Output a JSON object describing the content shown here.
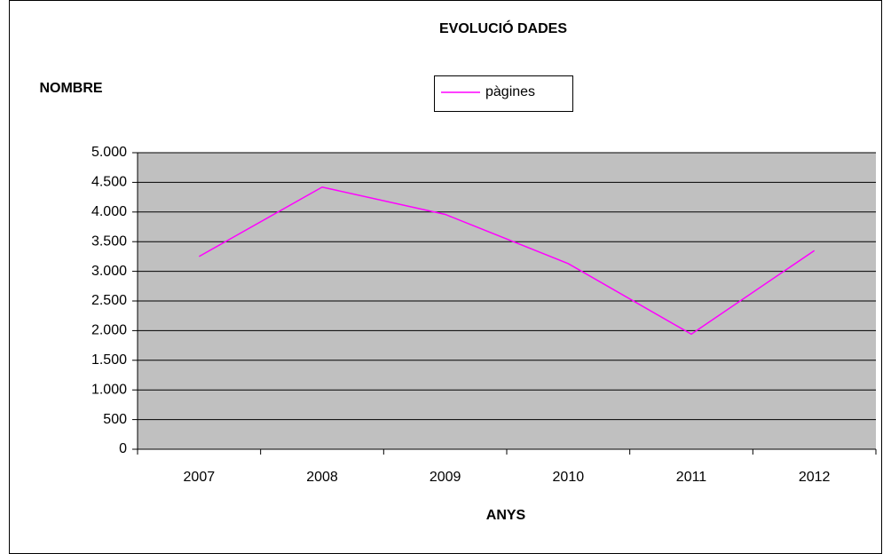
{
  "chart_data": {
    "type": "line",
    "title": "EVOLUCIÓ DADES",
    "y_label": "NOMBRE",
    "x_label": "ANYS",
    "categories": [
      "2007",
      "2008",
      "2009",
      "2010",
      "2011",
      "2012"
    ],
    "series": [
      {
        "name": "pàgines",
        "color": "#ff00ff",
        "values": [
          3250,
          4420,
          3960,
          3130,
          1940,
          3350
        ]
      }
    ],
    "ylim": [
      0,
      5000
    ],
    "yticks": [
      0,
      500,
      {
        "value": 1000,
        "label": "1.000"
      },
      {
        "value": 1500,
        "label": "1.500"
      },
      {
        "value": 2000,
        "label": "2.000"
      },
      {
        "value": 2500,
        "label": "2.500"
      },
      {
        "value": 3000,
        "label": "3.000"
      },
      {
        "value": 3500,
        "label": "3.500"
      },
      {
        "value": 4000,
        "label": "4.000"
      },
      {
        "value": 4500,
        "label": "4.500"
      },
      {
        "value": 5000,
        "label": "5.000"
      }
    ],
    "grid": true,
    "legend": "top",
    "plot_background": "#c0c0c0"
  }
}
